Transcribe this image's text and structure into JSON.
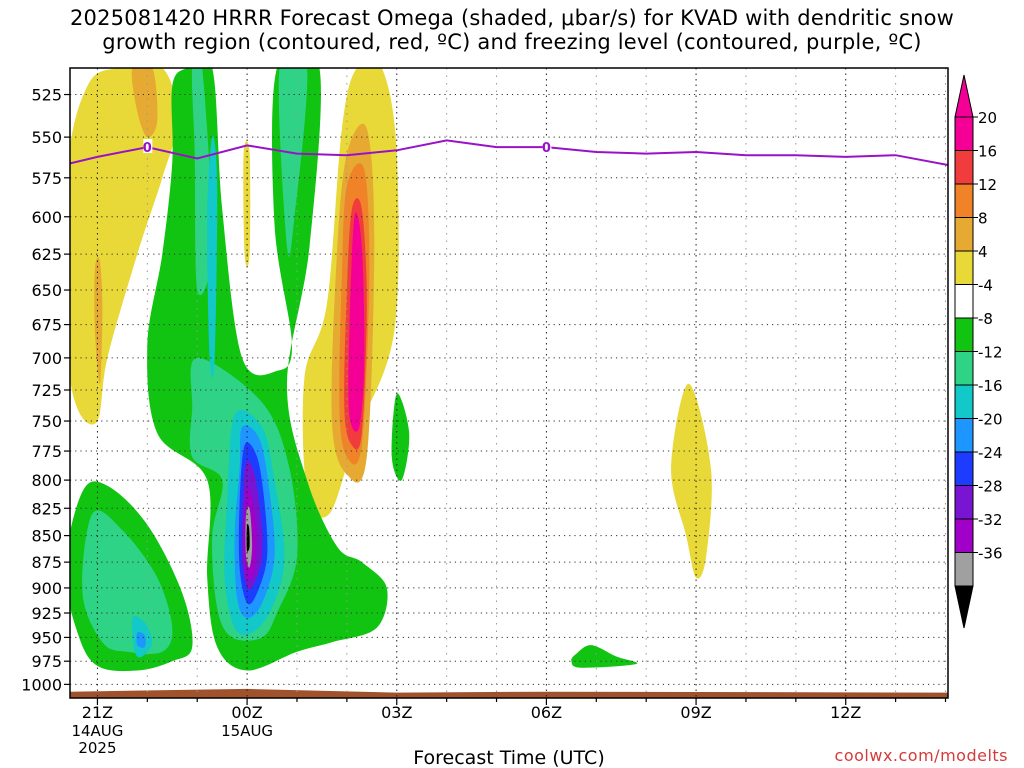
{
  "title": {
    "line1": "2025081420 HRRR Forecast Omega (shaded, μbar/s) for KVAD with dendritic snow",
    "line2": "growth region (contoured, red, ºC) and freezing level (contoured, purple, ºC)"
  },
  "credit": "coolwx.com/modelts",
  "chart_data": {
    "type": "heatmap",
    "xlabel": "Forecast Time (UTC)",
    "x_ticks": [
      {
        "hour": 0,
        "label": "21Z",
        "sub": [
          "14AUG",
          "2025"
        ]
      },
      {
        "hour": 3,
        "label": "00Z",
        "sub": [
          "15AUG"
        ]
      },
      {
        "hour": 6,
        "label": "03Z",
        "sub": []
      },
      {
        "hour": 9,
        "label": "06Z",
        "sub": []
      },
      {
        "hour": 12,
        "label": "09Z",
        "sub": []
      },
      {
        "hour": 15,
        "label": "12Z",
        "sub": []
      }
    ],
    "xlim": [
      -0.55,
      17.05
    ],
    "y_ticks": [
      525,
      550,
      575,
      600,
      625,
      650,
      675,
      700,
      725,
      750,
      775,
      800,
      825,
      850,
      875,
      900,
      925,
      950,
      975,
      1000
    ],
    "ylim": [
      510,
      1015
    ],
    "y_scale": "log-pressure",
    "grid": "dotted",
    "colorbar": {
      "tick_labels": [
        "20",
        "16",
        "12",
        "8",
        "4",
        "-4",
        "-8",
        "-12",
        "-16",
        "-20",
        "-24",
        "-28",
        "-32",
        "-36"
      ],
      "colors": [
        "#f40097",
        "#f03c3c",
        "#f08228",
        "#e6aa32",
        "#e8d838",
        "#ffffff",
        "#12c412",
        "#2ed386",
        "#12c8c8",
        "#1e96ff",
        "#1e3cff",
        "#7814d2",
        "#a000c8",
        "#a0a0a0"
      ]
    },
    "freezing_level": {
      "label": "0",
      "color": "#9912c8",
      "hours": [
        -0.55,
        0,
        1,
        2,
        3,
        4,
        5,
        6,
        7,
        8,
        9,
        10,
        11,
        12,
        13,
        14,
        15,
        16,
        17.05
      ],
      "pressure": [
        566,
        562,
        556,
        563,
        555,
        560,
        561,
        558,
        552,
        556,
        556,
        559,
        560,
        559,
        561,
        561,
        562,
        561,
        567
      ]
    },
    "omega_regions": [
      {
        "value": 6,
        "points": [
          [
            -0.6,
            570
          ],
          [
            -0.2,
            520
          ],
          [
            0.4,
            510
          ],
          [
            1.3,
            510
          ],
          [
            1.6,
            540
          ],
          [
            1.3,
            575
          ],
          [
            0.8,
            625
          ],
          [
            0.2,
            700
          ],
          [
            0,
            750
          ],
          [
            -0.4,
            740
          ],
          [
            -0.6,
            690
          ]
        ]
      },
      {
        "value": 10,
        "points": [
          [
            0.7,
            510
          ],
          [
            1.1,
            510
          ],
          [
            1.2,
            540
          ],
          [
            1.0,
            550
          ],
          [
            0.8,
            535
          ]
        ]
      },
      {
        "value": 10,
        "points": [
          [
            -0.05,
            635
          ],
          [
            0.05,
            630
          ],
          [
            0.1,
            665
          ],
          [
            0.05,
            720
          ],
          [
            -0.05,
            680
          ]
        ]
      },
      {
        "value": 6,
        "points": [
          [
            2.93,
            560
          ],
          [
            3.05,
            560
          ],
          [
            3.05,
            625
          ],
          [
            2.95,
            625
          ]
        ]
      },
      {
        "value": 6,
        "points": [
          [
            5.2,
            510
          ],
          [
            5.7,
            510
          ],
          [
            6.0,
            560
          ],
          [
            5.95,
            680
          ],
          [
            5.2,
            760
          ],
          [
            4.65,
            830
          ],
          [
            4.2,
            810
          ],
          [
            4.15,
            715
          ],
          [
            4.6,
            660
          ],
          [
            4.9,
            545
          ]
        ]
      },
      {
        "value": 10,
        "points": [
          [
            5.0,
            560
          ],
          [
            5.4,
            545
          ],
          [
            5.55,
            615
          ],
          [
            5.4,
            780
          ],
          [
            5.0,
            795
          ],
          [
            4.7,
            750
          ],
          [
            4.8,
            625
          ]
        ]
      },
      {
        "value": 14,
        "points": [
          [
            5.0,
            580
          ],
          [
            5.35,
            570
          ],
          [
            5.45,
            640
          ],
          [
            5.3,
            770
          ],
          [
            5.0,
            780
          ],
          [
            4.85,
            740
          ],
          [
            4.9,
            640
          ]
        ]
      },
      {
        "value": 18,
        "points": [
          [
            5.1,
            595
          ],
          [
            5.3,
            595
          ],
          [
            5.4,
            660
          ],
          [
            5.3,
            760
          ],
          [
            5.1,
            770
          ],
          [
            4.95,
            740
          ],
          [
            5.0,
            650
          ]
        ]
      },
      {
        "value": 22,
        "points": [
          [
            5.15,
            600
          ],
          [
            5.3,
            620
          ],
          [
            5.35,
            700
          ],
          [
            5.25,
            755
          ],
          [
            5.05,
            745
          ],
          [
            5.05,
            680
          ]
        ]
      },
      {
        "value": 6,
        "points": [
          [
            11.85,
            720
          ],
          [
            12.3,
            790
          ],
          [
            12.2,
            870
          ],
          [
            12.0,
            890
          ],
          [
            11.8,
            850
          ],
          [
            11.5,
            790
          ]
        ]
      },
      {
        "value": -6,
        "points": [
          [
            1.8,
            510
          ],
          [
            2.3,
            510
          ],
          [
            2.5,
            595
          ],
          [
            2.9,
            700
          ],
          [
            3.6,
            710
          ],
          [
            3.9,
            690
          ],
          [
            3.55,
            605
          ],
          [
            3.6,
            510
          ],
          [
            4.45,
            510
          ],
          [
            4.25,
            620
          ],
          [
            3.8,
            720
          ],
          [
            4.2,
            800
          ],
          [
            4.8,
            860
          ],
          [
            5.3,
            875
          ],
          [
            5.8,
            900
          ],
          [
            5.6,
            940
          ],
          [
            4.7,
            955
          ],
          [
            4.0,
            965
          ],
          [
            3.0,
            985
          ],
          [
            2.4,
            960
          ],
          [
            2.2,
            890
          ],
          [
            2.2,
            800
          ],
          [
            1.2,
            760
          ],
          [
            1.0,
            690
          ],
          [
            1.3,
            625
          ],
          [
            1.5,
            565
          ],
          [
            1.5,
            520
          ]
        ]
      },
      {
        "value": -6,
        "points": [
          [
            -0.3,
            810
          ],
          [
            0.2,
            805
          ],
          [
            1.0,
            840
          ],
          [
            1.7,
            905
          ],
          [
            1.9,
            960
          ],
          [
            1.5,
            975
          ],
          [
            0.8,
            985
          ],
          [
            0.0,
            980
          ],
          [
            -0.4,
            945
          ],
          [
            -0.65,
            880
          ]
        ]
      },
      {
        "value": -10,
        "points": [
          [
            1.9,
            510
          ],
          [
            2.1,
            510
          ],
          [
            2.3,
            620
          ],
          [
            2.0,
            650
          ],
          [
            1.95,
            560
          ]
        ]
      },
      {
        "value": -10,
        "points": [
          [
            3.65,
            510
          ],
          [
            4.2,
            510
          ],
          [
            3.95,
            600
          ],
          [
            3.8,
            620
          ]
        ]
      },
      {
        "value": -10,
        "points": [
          [
            2.0,
            700
          ],
          [
            3.3,
            735
          ],
          [
            3.85,
            790
          ],
          [
            4.0,
            870
          ],
          [
            3.6,
            925
          ],
          [
            3.3,
            950
          ],
          [
            2.7,
            950
          ],
          [
            2.4,
            920
          ],
          [
            2.3,
            850
          ],
          [
            2.5,
            800
          ],
          [
            1.9,
            780
          ],
          [
            1.9,
            740
          ]
        ]
      },
      {
        "value": -10,
        "points": [
          [
            -0.1,
            830
          ],
          [
            0.5,
            845
          ],
          [
            1.2,
            890
          ],
          [
            1.5,
            940
          ],
          [
            1.3,
            965
          ],
          [
            0.6,
            965
          ],
          [
            0.1,
            955
          ],
          [
            -0.3,
            905
          ]
        ]
      },
      {
        "value": -6,
        "points": [
          [
            6.0,
            728
          ],
          [
            6.25,
            760
          ],
          [
            6.1,
            800
          ],
          [
            5.9,
            780
          ]
        ]
      },
      {
        "value": -6,
        "points": [
          [
            9.6,
            967
          ],
          [
            9.9,
            958
          ],
          [
            10.4,
            970
          ],
          [
            10.8,
            978
          ],
          [
            9.7,
            982
          ],
          [
            9.5,
            975
          ]
        ]
      },
      {
        "value": -14,
        "points": [
          [
            2.3,
            550
          ],
          [
            2.4,
            580
          ],
          [
            2.35,
            700
          ],
          [
            2.25,
            700
          ],
          [
            2.2,
            600
          ]
        ]
      },
      {
        "value": -14,
        "points": [
          [
            2.75,
            745
          ],
          [
            3.3,
            755
          ],
          [
            3.55,
            800
          ],
          [
            3.75,
            870
          ],
          [
            3.5,
            920
          ],
          [
            3.1,
            945
          ],
          [
            2.75,
            940
          ],
          [
            2.55,
            890
          ],
          [
            2.6,
            820
          ]
        ]
      },
      {
        "value": -14,
        "points": [
          [
            0.7,
            930
          ],
          [
            0.95,
            935
          ],
          [
            1.1,
            955
          ],
          [
            0.9,
            970
          ],
          [
            0.75,
            965
          ]
        ]
      },
      {
        "value": -18,
        "points": [
          [
            2.9,
            755
          ],
          [
            3.25,
            765
          ],
          [
            3.45,
            810
          ],
          [
            3.55,
            870
          ],
          [
            3.3,
            915
          ],
          [
            3.0,
            930
          ],
          [
            2.8,
            910
          ],
          [
            2.75,
            850
          ],
          [
            2.85,
            790
          ]
        ]
      },
      {
        "value": -18,
        "points": [
          [
            0.8,
            945
          ],
          [
            0.95,
            948
          ],
          [
            0.95,
            960
          ],
          [
            0.8,
            958
          ]
        ]
      },
      {
        "value": -22,
        "points": [
          [
            2.95,
            770
          ],
          [
            3.2,
            780
          ],
          [
            3.35,
            820
          ],
          [
            3.4,
            870
          ],
          [
            3.2,
            905
          ],
          [
            3.0,
            915
          ],
          [
            2.85,
            880
          ],
          [
            2.85,
            820
          ]
        ]
      },
      {
        "value": -26,
        "points": [
          [
            2.98,
            785
          ],
          [
            3.15,
            795
          ],
          [
            3.28,
            835
          ],
          [
            3.3,
            870
          ],
          [
            3.15,
            895
          ],
          [
            3.0,
            900
          ],
          [
            2.9,
            870
          ],
          [
            2.92,
            820
          ]
        ]
      },
      {
        "value": -30,
        "points": [
          [
            2.98,
            810
          ],
          [
            3.1,
            815
          ],
          [
            3.2,
            850
          ],
          [
            3.15,
            885
          ],
          [
            3.0,
            890
          ],
          [
            2.94,
            860
          ]
        ]
      },
      {
        "value": -34,
        "points": [
          [
            3.0,
            825
          ],
          [
            3.06,
            828
          ],
          [
            3.1,
            860
          ],
          [
            3.05,
            880
          ],
          [
            2.98,
            870
          ],
          [
            2.97,
            840
          ]
        ]
      },
      {
        "value": -38,
        "points": [
          [
            3.0,
            840
          ],
          [
            3.04,
            843
          ],
          [
            3.05,
            860
          ],
          [
            3.0,
            865
          ],
          [
            2.99,
            855
          ]
        ]
      }
    ],
    "terrain": {
      "color": "#a0522d",
      "hours": [
        -0.55,
        3,
        6,
        9,
        17.05
      ],
      "pressure": [
        1008,
        1005,
        1009,
        1008,
        1009
      ]
    }
  }
}
